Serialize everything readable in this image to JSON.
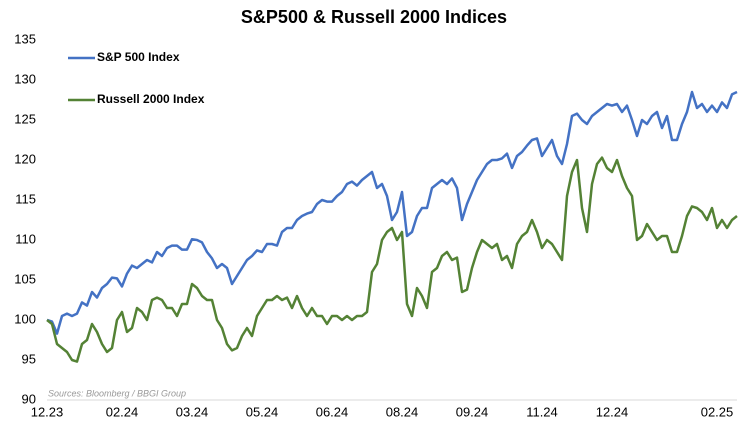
{
  "chart_data": {
    "type": "line",
    "title": "S&P500 & Russell 2000 Indices",
    "source": "Sources: Bloomberg / BBGI Group",
    "legend": "upper left",
    "categories": [
      "12.23",
      null,
      null,
      null,
      null,
      null,
      null,
      null,
      null,
      null,
      null,
      null,
      null,
      null,
      null,
      "02.24",
      null,
      null,
      null,
      null,
      null,
      null,
      null,
      null,
      null,
      null,
      null,
      null,
      null,
      "03.24",
      null,
      null,
      null,
      null,
      null,
      null,
      null,
      null,
      null,
      null,
      null,
      null,
      null,
      "05.24",
      null,
      null,
      null,
      null,
      null,
      null,
      null,
      null,
      null,
      null,
      null,
      null,
      null,
      "06.24",
      null,
      null,
      null,
      null,
      null,
      null,
      null,
      null,
      null,
      null,
      null,
      null,
      null,
      "08.24",
      null,
      null,
      null,
      null,
      null,
      null,
      null,
      null,
      null,
      null,
      null,
      null,
      null,
      "09.24",
      null,
      null,
      null,
      null,
      null,
      null,
      null,
      null,
      null,
      null,
      null,
      null,
      null,
      "11.24",
      null,
      null,
      null,
      null,
      null,
      null,
      null,
      null,
      null,
      null,
      null,
      null,
      null,
      "12.24",
      null,
      null,
      null,
      null,
      null,
      null,
      null,
      null,
      null,
      null,
      null,
      null,
      null,
      null,
      null,
      null,
      null,
      null,
      null,
      null,
      "02.25",
      null,
      null,
      null,
      null
    ],
    "series": [
      {
        "name": "S&P 500 Index",
        "color": "#4472c4",
        "values": [
          100,
          99.8,
          98.3,
          100.5,
          100.8,
          100.5,
          100.8,
          102.2,
          101.8,
          103.5,
          102.8,
          104,
          104.5,
          105.3,
          105.2,
          104.2,
          105.8,
          106.8,
          106.5,
          107,
          107.5,
          107.2,
          108.5,
          108,
          109,
          109.3,
          109.3,
          108.8,
          108.8,
          110.1,
          110,
          109.7,
          108.5,
          107.7,
          106.5,
          107,
          106.5,
          104.5,
          105.5,
          106.5,
          107.5,
          108,
          108.7,
          108.5,
          109.5,
          109.5,
          109.3,
          111,
          111.5,
          111.5,
          112.5,
          113,
          113.3,
          113.5,
          114.5,
          115,
          114.8,
          114.8,
          115.5,
          116,
          117,
          117.3,
          116.8,
          117.5,
          118,
          118.5,
          116.5,
          117,
          115.5,
          112.5,
          113.5,
          116,
          110.5,
          111,
          113,
          114,
          114,
          116.5,
          117,
          117.5,
          117,
          117.7,
          116.5,
          112.5,
          114.5,
          116,
          117.5,
          118.5,
          119.5,
          120,
          120,
          120.2,
          120.8,
          119,
          120.5,
          121,
          121.8,
          122.5,
          122.7,
          120.5,
          121.5,
          122.5,
          120.5,
          119.5,
          122,
          125.5,
          125.8,
          125,
          124.5,
          125.5,
          126,
          126.5,
          127,
          126.8,
          127,
          126,
          126.8,
          125,
          123,
          125,
          124.5,
          125.5,
          126,
          124,
          125.5,
          122.5,
          122.5,
          124.5,
          126,
          128.5,
          126.5,
          127,
          126,
          126.8,
          126,
          127.2,
          126.5,
          128.2,
          128.5
        ]
      },
      {
        "name": "Russell 2000 Index",
        "color": "#548235",
        "values": [
          100,
          99.5,
          97,
          96.5,
          96,
          95,
          94.8,
          97,
          97.5,
          99.5,
          98.5,
          97,
          96,
          96.5,
          100,
          101,
          98.5,
          99,
          101.5,
          101,
          100,
          102.5,
          102.8,
          102.5,
          101.5,
          101.5,
          100.5,
          102,
          102,
          104.5,
          104,
          103,
          102.5,
          102.5,
          100,
          99,
          97,
          96.2,
          96.5,
          98,
          99,
          98,
          100.5,
          101.5,
          102.5,
          102.5,
          103,
          102.5,
          102.8,
          101.5,
          103,
          101.5,
          100.5,
          101.5,
          100.5,
          100.5,
          99.5,
          100.5,
          100.5,
          100,
          100.5,
          100,
          100.5,
          100.5,
          101,
          106,
          107,
          110,
          111,
          111.5,
          110,
          111,
          102,
          100.5,
          104,
          103,
          101.5,
          106,
          106.5,
          108,
          108.5,
          107.5,
          107.8,
          103.5,
          103.8,
          106.5,
          108.5,
          110,
          109.5,
          109,
          109.5,
          107.5,
          108,
          106.5,
          109.5,
          110.5,
          111,
          112.5,
          111,
          109,
          110,
          109.5,
          108.5,
          107.5,
          115.5,
          118.5,
          120,
          114,
          111,
          117,
          119.5,
          120.3,
          119,
          118.5,
          120,
          118,
          116.5,
          115.5,
          110,
          110.5,
          112,
          111,
          110,
          110.5,
          110.5,
          108.5,
          108.5,
          110.5,
          113,
          114.2,
          114,
          113.5,
          112.5,
          114,
          111.5,
          112.5,
          111.5,
          112.5,
          113
        ]
      }
    ],
    "ylim": [
      90,
      135
    ],
    "yticks": [
      90,
      95,
      100,
      105,
      110,
      115,
      120,
      125,
      130,
      135
    ],
    "grid": false
  }
}
